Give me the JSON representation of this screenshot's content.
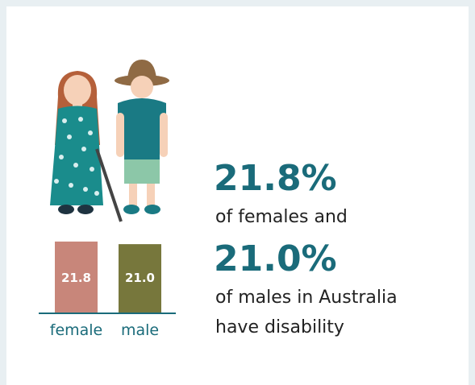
{
  "chart_data": {
    "type": "bar",
    "categories": [
      "female",
      "male"
    ],
    "values": [
      21.8,
      21.0
    ],
    "value_labels": [
      "21.8",
      "21.0"
    ],
    "colors": [
      "#c8867a",
      "#77773c"
    ],
    "ylim": [
      0,
      24
    ]
  },
  "text": {
    "headline_female": "21.8%",
    "line_female": "of females and",
    "headline_male": "21.0%",
    "line_male_1": "of males in Australia",
    "line_male_2": "have disability"
  }
}
